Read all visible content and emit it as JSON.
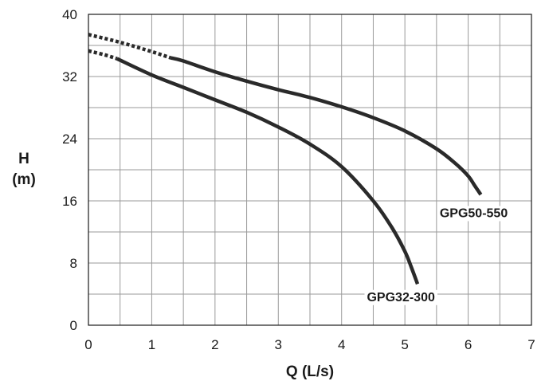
{
  "chart_data": {
    "type": "line",
    "title": "",
    "xlabel": "Q (L/s)",
    "ylabel_line1": "H",
    "ylabel_line2": "(m)",
    "xlim": [
      0,
      7
    ],
    "ylim": [
      0,
      40
    ],
    "x_ticks": [
      0,
      1,
      2,
      3,
      4,
      5,
      6,
      7
    ],
    "y_ticks": [
      0,
      8,
      16,
      24,
      32,
      40
    ],
    "x_minor_step": 0.5,
    "y_minor_step": 4,
    "grid": true,
    "series": [
      {
        "name": "GPG50-550",
        "color": "#2a2a2a",
        "dotted_x": [
          0.0,
          0.5,
          1.0,
          1.3
        ],
        "dotted_y": [
          37.4,
          36.4,
          35.2,
          34.4
        ],
        "x": [
          1.3,
          1.5,
          2.0,
          2.5,
          3.0,
          3.5,
          4.0,
          4.5,
          5.0,
          5.5,
          5.8,
          6.0,
          6.1,
          6.2
        ],
        "y": [
          34.4,
          34.0,
          32.6,
          31.4,
          30.3,
          29.3,
          28.1,
          26.7,
          25.0,
          22.7,
          20.8,
          19.2,
          18.0,
          16.8
        ]
      },
      {
        "name": "GPG32-300",
        "color": "#2a2a2a",
        "dotted_x": [
          0.0,
          0.25,
          0.45
        ],
        "dotted_y": [
          35.3,
          34.8,
          34.3
        ],
        "x": [
          0.45,
          1.0,
          1.5,
          2.0,
          2.5,
          3.0,
          3.5,
          4.0,
          4.5,
          4.8,
          5.0,
          5.1,
          5.2
        ],
        "y": [
          34.3,
          32.2,
          30.6,
          29.0,
          27.4,
          25.5,
          23.3,
          20.4,
          16.0,
          12.5,
          9.5,
          7.5,
          5.3
        ]
      }
    ],
    "labels": [
      {
        "text": "GPG50-550",
        "series": "GPG50-550",
        "x": 5.55,
        "y": 13.9
      },
      {
        "text": "GPG32-300",
        "series": "GPG32-300",
        "x": 4.4,
        "y": 3.1
      }
    ]
  }
}
